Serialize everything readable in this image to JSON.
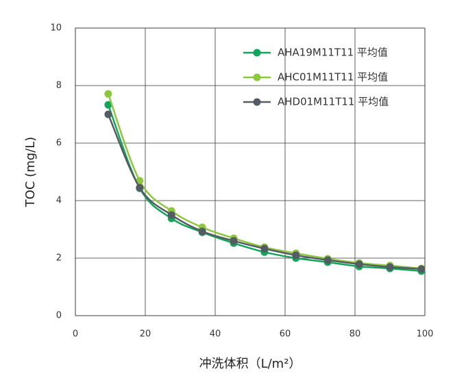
{
  "chart_data": {
    "type": "line",
    "x_label": "冲洗体积（L/m²）",
    "y_label": "TOC (mg/L)",
    "x": [
      9.4,
      18.4,
      27.5,
      36.3,
      45.3,
      54.1,
      63.1,
      72.2,
      81.2,
      90,
      99
    ],
    "series": [
      {
        "name": "AHA19M11T11 平均值",
        "color": "#13a45a",
        "values": [
          7.33,
          4.43,
          3.38,
          2.9,
          2.52,
          2.21,
          2.0,
          1.86,
          1.71,
          1.64,
          1.55
        ]
      },
      {
        "name": "AHC01M11T11 平均值",
        "color": "#8dc63f",
        "values": [
          7.71,
          4.69,
          3.64,
          3.07,
          2.69,
          2.38,
          2.17,
          1.98,
          1.83,
          1.74,
          1.64
        ]
      },
      {
        "name": "AHD01M11T11 平均值",
        "color": "#555b63",
        "values": [
          7.0,
          4.45,
          3.5,
          2.93,
          2.6,
          2.33,
          2.1,
          1.93,
          1.79,
          1.69,
          1.62
        ]
      }
    ],
    "xlim": [
      0,
      100
    ],
    "xticks": [
      0,
      20,
      40,
      60,
      80,
      100
    ],
    "ylim": [
      0,
      10
    ],
    "yticks": [
      0,
      2,
      4,
      6,
      8,
      10
    ],
    "grid": true,
    "legend": "upper right"
  }
}
